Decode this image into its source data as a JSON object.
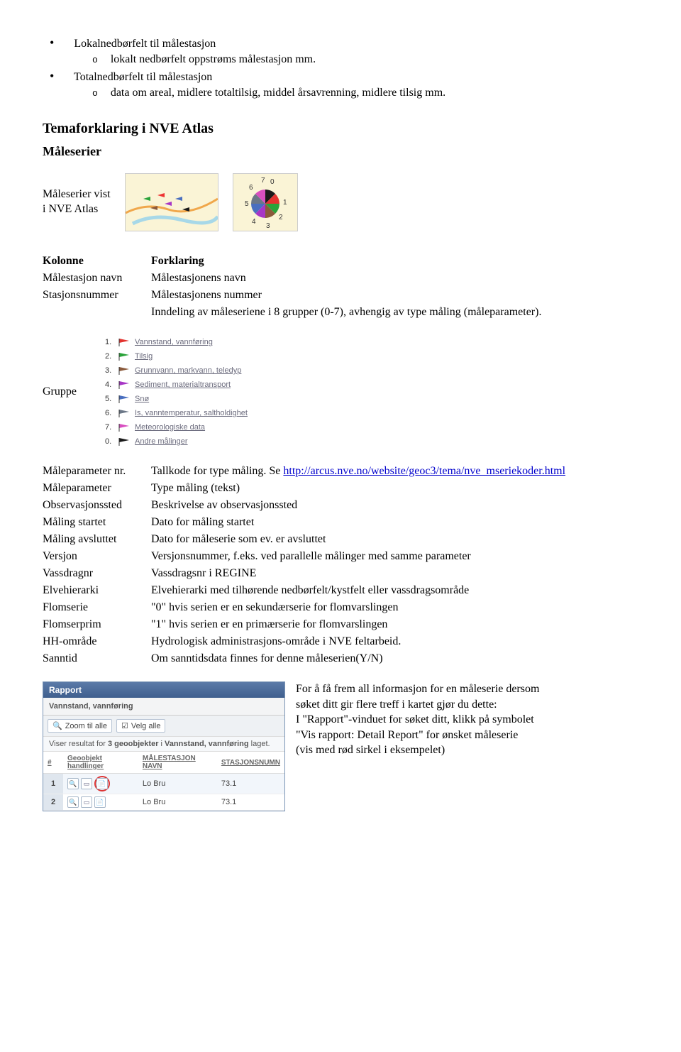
{
  "top": {
    "b1": "Lokalnedbørfelt til målestasjon",
    "b1_sub1": "lokalt nedbørfelt oppstrøms  målestasjon mm.",
    "b2": "Totalnedbørfelt til målestasjon",
    "b2_sub1": "data om areal, midlere totaltilsig, middel årsavrenning, midlere tilsig mm."
  },
  "section_title": "Temaforklaring i NVE Atlas",
  "subsection_title": "Måleserier",
  "vist_label_l1": "Måleserier vist",
  "vist_label_l2": "i NVE Atlas",
  "table_header": {
    "col": "Kolonne",
    "fork": "Forklaring"
  },
  "rows1": {
    "malestasjon_navn_k": "Målestasjon navn",
    "malestasjon_navn_f": "Målestasjonens navn",
    "stasjonsnummer_k": "Stasjonsnummer",
    "stasjonsnummer_f": "Målestasjonens nummer",
    "inndeling": "Inndeling av måleseriene i 8 grupper (0-7), avhengig av type måling (måleparameter)."
  },
  "gruppe_label": "Gruppe",
  "legend": {
    "items": [
      {
        "num": "1.",
        "color": "#e3332f",
        "label": "Vannstand, vannføring"
      },
      {
        "num": "2.",
        "color": "#2aa33a",
        "label": "Tilsig"
      },
      {
        "num": "3.",
        "color": "#8b5a3c",
        "label": "Grunnvann, markvann, teledyp"
      },
      {
        "num": "4.",
        "color": "#a736c6",
        "label": "Sediment, materialtransport"
      },
      {
        "num": "5.",
        "color": "#4a6fbf",
        "label": "Snø"
      },
      {
        "num": "6.",
        "color": "#6b7787",
        "label": "Is, vanntemperatur, saltholdighet"
      },
      {
        "num": "7.",
        "color": "#d84fc0",
        "label": "Meteorologiske data"
      },
      {
        "num": "0.",
        "color": "#1a1a1a",
        "label": "Andre målinger"
      }
    ]
  },
  "rows2": [
    {
      "k": "Måleparameter nr.",
      "f": "Tallkode for type måling. Se ",
      "link": "http://arcus.nve.no/website/geoc3/tema/nve_mseriekoder.html"
    },
    {
      "k": "Måleparameter",
      "f": "Type måling (tekst)"
    },
    {
      "k": "Observasjonssted",
      "f": "Beskrivelse av observasjonssted"
    },
    {
      "k": "Måling startet",
      "f": "Dato for måling startet"
    },
    {
      "k": "Måling avsluttet",
      "f": "Dato for måleserie som ev. er avsluttet"
    },
    {
      "k": "Versjon",
      "f": "Versjonsnummer, f.eks. ved parallelle målinger med samme parameter"
    },
    {
      "k": "Vassdragnr",
      "f": "Vassdragsnr i REGINE"
    },
    {
      "k": "Elvehierarki",
      "f": "Elvehierarki med tilhørende nedbørfelt/kystfelt eller vassdragsområde"
    },
    {
      "k": "Flomserie",
      "f": "\"0\" hvis serien er en sekundærserie for flomvarslingen"
    },
    {
      "k": "Flomserprim",
      "f": "\"1\" hvis serien er en primærserie for flomvarslingen"
    },
    {
      "k": "HH-område",
      "f": "Hydrologisk administrasjons-område i NVE feltarbeid."
    },
    {
      "k": "Sanntid",
      "f": "Om sanntidsdata finnes for denne måleserien(Y/N)"
    }
  ],
  "rapport": {
    "header": "Rapport",
    "tab": "Vannstand, vannføring",
    "btn_zoom": "Zoom til alle",
    "btn_velg": "Velg alle",
    "status_pre": "Viser resultat for ",
    "status_bold": "3 geoobjekter",
    "status_mid": " i ",
    "status_layer": "Vannstand, vannføring",
    "status_post": " laget.",
    "col_hash": "#",
    "col_handl": "Geoobjekt handlinger",
    "col_navn": "MÅLESTASJON NAVN",
    "col_num": "STASJONSNUMN",
    "r1_num": "1",
    "r1_navn": "Lo Bru",
    "r1_stat": "73.1",
    "r2_num": "2",
    "r2_navn": "Lo Bru",
    "r2_stat": "73.1"
  },
  "bottom_text": {
    "l1": "For å få frem all informasjon for en måleserie dersom",
    "l2": "søket ditt gir flere treff i kartet gjør du dette:",
    "l3": "I \"Rapport\"-vinduet for søket ditt, klikk på symbolet",
    "l4": "\"Vis rapport: Detail Report\" for ønsket måleserie",
    "l5": "(vis med rød sirkel i eksempelet)"
  },
  "map_svg": {
    "bg": "#faf4d6",
    "road": "#f0a74b",
    "water": "#a7d8e8",
    "flags": [
      "#e33",
      "#a736c6",
      "#8b5a3c",
      "#4a6fbf",
      "#1a1a1a",
      "#2aa33a"
    ]
  },
  "pie_svg": {
    "bg": "#faf4d6",
    "labels": [
      "7",
      "0",
      "5",
      "6",
      "1",
      "4",
      "2",
      "3"
    ],
    "colors": [
      "#d84fc0",
      "#1a1a1a",
      "#4a6fbf",
      "#6b7787",
      "#e3332f",
      "#a736c6",
      "#2aa33a",
      "#8b5a3c"
    ]
  }
}
